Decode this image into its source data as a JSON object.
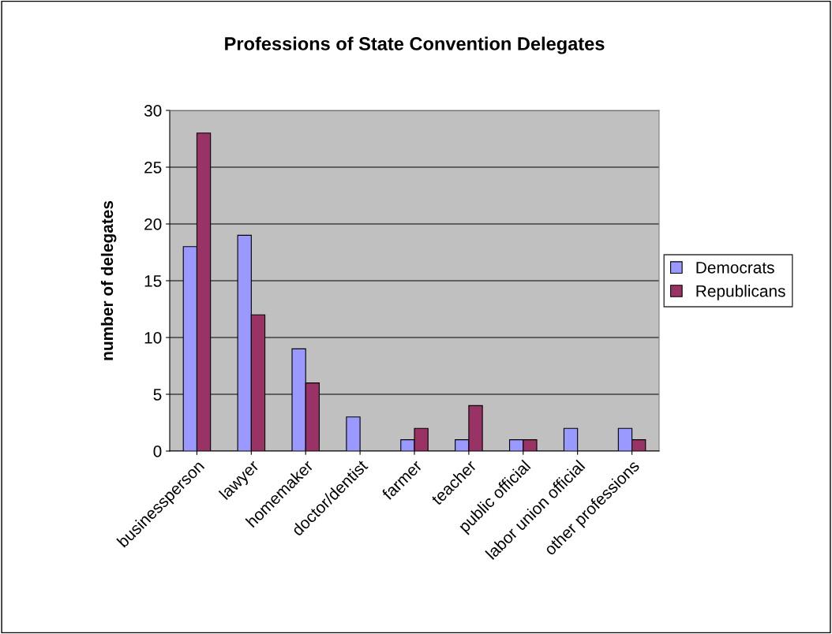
{
  "chart_data": {
    "type": "bar",
    "title": "Professions of State Convention Delegates",
    "ylabel": "number of delegates",
    "categories": [
      "businessperson",
      "lawyer",
      "homemaker",
      "doctor/dentist",
      "farmer",
      "teacher",
      "public official",
      "labor union official",
      "other professions"
    ],
    "series": [
      {
        "name": "Democrats",
        "color": "#9999ff",
        "values": [
          18,
          19,
          9,
          3,
          1,
          1,
          1,
          2,
          2
        ]
      },
      {
        "name": "Republicans",
        "color": "#993366",
        "values": [
          28,
          12,
          6,
          null,
          2,
          4,
          1,
          null,
          1
        ]
      }
    ],
    "ylim": [
      0,
      30
    ],
    "yticks": [
      0,
      5,
      10,
      15,
      20,
      25,
      30
    ],
    "grid": "y",
    "legend": "right"
  }
}
